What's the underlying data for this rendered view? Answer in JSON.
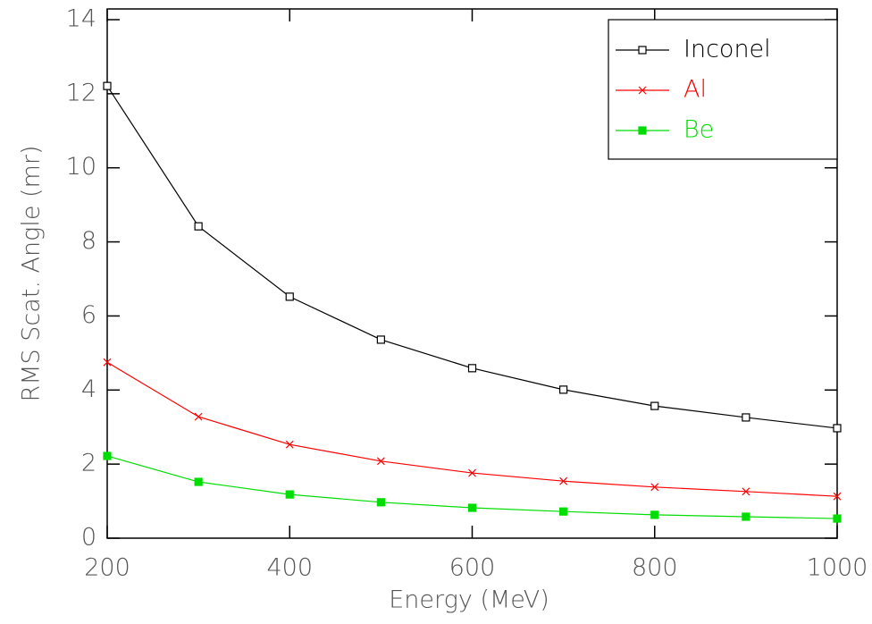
{
  "chart_data": {
    "type": "line",
    "x_label": "Energy (MeV)",
    "y_label": "RMS Scat. Angle (mr)",
    "x": [
      200,
      300,
      400,
      500,
      600,
      700,
      800,
      900,
      1000
    ],
    "series": [
      {
        "name": "Inconel",
        "color": "#000000",
        "marker": "square-open",
        "values": [
          12.21,
          8.42,
          6.52,
          5.36,
          4.59,
          4.01,
          3.57,
          3.26,
          2.97
        ]
      },
      {
        "name": "Al",
        "color": "#ff0000",
        "marker": "x",
        "values": [
          4.75,
          3.28,
          2.53,
          2.08,
          1.76,
          1.54,
          1.38,
          1.26,
          1.13
        ]
      },
      {
        "name": "Be",
        "color": "#00dd00",
        "marker": "square-filled",
        "values": [
          2.22,
          1.52,
          1.18,
          0.97,
          0.82,
          0.72,
          0.63,
          0.58,
          0.53
        ]
      }
    ],
    "xlim": [
      200,
      1000
    ],
    "xticks": [
      200,
      400,
      600,
      800,
      1000
    ],
    "ylim": [
      0,
      14
    ],
    "yticks": [
      0,
      2,
      4,
      6,
      8,
      10,
      12,
      14
    ],
    "legend": "upper right",
    "grid": false
  }
}
